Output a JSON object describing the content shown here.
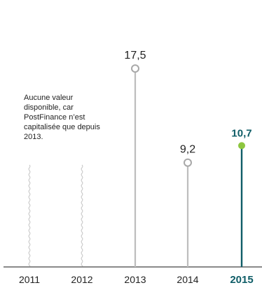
{
  "chart_data": {
    "type": "lollipop",
    "title": "",
    "xlabel": "",
    "ylabel": "",
    "categories": [
      "2011",
      "2012",
      "2013",
      "2014",
      "2015"
    ],
    "values": [
      null,
      null,
      17.5,
      9.2,
      10.7
    ],
    "value_labels": [
      "",
      "",
      "17,5",
      "9,2",
      "10,7"
    ],
    "highlight_index": 4,
    "ylim": [
      0,
      20
    ],
    "grid": false,
    "legend": "none",
    "note": "Aucune valeur disponible, car PostFinance n’est capitalisée que depuis 2013.",
    "colors": {
      "axis": "#444444",
      "stem": "#bdbdbd",
      "marker": "#a8a8a8",
      "highlight_stem": "#0f5d67",
      "highlight_marker": "#8dc63f",
      "text": "#222222",
      "highlight_text": "#0f5d67",
      "missing_line": "#c5c5c5"
    }
  }
}
